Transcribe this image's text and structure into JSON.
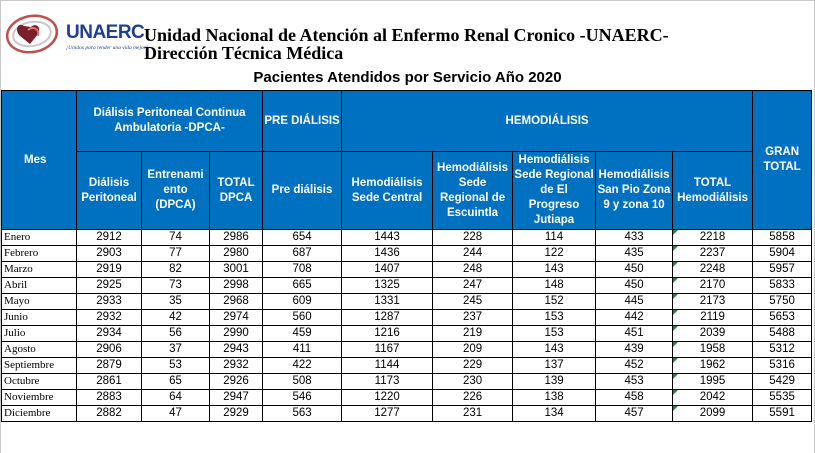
{
  "logo": {
    "name": "UNAERC",
    "tagline": "¡Unidos para tender una vida mejor!"
  },
  "header": {
    "org_line1": "Unidad Nacional de Atención al Enfermo Renal Cronico -UNAERC-",
    "org_line2": "Dirección Técnica Médica",
    "title": "Pacientes Atendidos por Servicio Año 2020"
  },
  "table": {
    "headers": {
      "mes": "Mes",
      "dpca_group": "Diálisis Peritoneal Continua Ambulatoria -DPCA-",
      "pre_group": "PRE DIÁLISIS",
      "hemo_group": "HEMODIÁLISIS",
      "gran_total": "GRAN TOTAL",
      "dialisis_peritoneal": "Diálisis Peritoneal",
      "entrenamiento": "Entrenami ento (DPCA)",
      "total_dpca": "TOTAL DPCA",
      "pre_dialisis": "Pre diálisis",
      "hemo_central": "Hemodiálisis Sede Central",
      "hemo_escuintla": "Hemodiálisis Sede Regional de Escuintla",
      "hemo_jutiapa": "Hemodiálisis Sede Regional de El Progreso Jutiapa",
      "hemo_sanpio": "Hemodiálisis San Pio Zona 9 y zona 10",
      "total_hemo": "TOTAL Hemodiálisis"
    },
    "rows": [
      [
        "Enero",
        "2912",
        "74",
        "2986",
        "654",
        "1443",
        "228",
        "114",
        "433",
        "2218",
        "5858"
      ],
      [
        "Febrero",
        "2903",
        "77",
        "2980",
        "687",
        "1436",
        "244",
        "122",
        "435",
        "2237",
        "5904"
      ],
      [
        "Marzo",
        "2919",
        "82",
        "3001",
        "708",
        "1407",
        "248",
        "143",
        "450",
        "2248",
        "5957"
      ],
      [
        "Abril",
        "2925",
        "73",
        "2998",
        "665",
        "1325",
        "247",
        "148",
        "450",
        "2170",
        "5833"
      ],
      [
        "Mayo",
        "2933",
        "35",
        "2968",
        "609",
        "1331",
        "245",
        "152",
        "445",
        "2173",
        "5750"
      ],
      [
        "Junio",
        "2932",
        "42",
        "2974",
        "560",
        "1287",
        "237",
        "153",
        "442",
        "2119",
        "5653"
      ],
      [
        "Julio",
        "2934",
        "56",
        "2990",
        "459",
        "1216",
        "219",
        "153",
        "451",
        "2039",
        "5488"
      ],
      [
        "Agosto",
        "2906",
        "37",
        "2943",
        "411",
        "1167",
        "209",
        "143",
        "439",
        "1958",
        "5312"
      ],
      [
        "Septiembre",
        "2879",
        "53",
        "2932",
        "422",
        "1144",
        "229",
        "137",
        "452",
        "1962",
        "5316"
      ],
      [
        "Octubre",
        "2861",
        "65",
        "2926",
        "508",
        "1173",
        "230",
        "139",
        "453",
        "1995",
        "5429"
      ],
      [
        "Noviembre",
        "2883",
        "64",
        "2947",
        "546",
        "1220",
        "226",
        "138",
        "458",
        "2042",
        "5535"
      ],
      [
        "Diciembre",
        "2882",
        "47",
        "2929",
        "563",
        "1277",
        "231",
        "134",
        "457",
        "2099",
        "5591"
      ]
    ]
  }
}
